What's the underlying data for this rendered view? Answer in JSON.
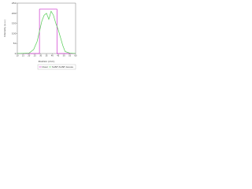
{
  "chart_data": {
    "type": "line",
    "xlabel": "Position (mm)",
    "ylabel": "Intensity (a.u.)",
    "xlim": [
      10,
      60
    ],
    "xticks": [
      10,
      15,
      20,
      25,
      30,
      35,
      40,
      45,
      50,
      55,
      60
    ],
    "ylim": [
      0,
      250
    ],
    "yticks": [
      0,
      50,
      100,
      150,
      200,
      250
    ],
    "legend": "lower right",
    "series": [
      {
        "name": "Ideal",
        "color": "#cc33cc",
        "x": [
          10,
          29,
          29,
          44,
          44,
          60
        ],
        "values": [
          0,
          0,
          220,
          220,
          0,
          0
        ]
      },
      {
        "name": "SANT-SANT-Gauss",
        "color": "#55cc55",
        "x": [
          10,
          20,
          24,
          27,
          29,
          31,
          33,
          35,
          37,
          39,
          41,
          43,
          45,
          47,
          49,
          51,
          55,
          60
        ],
        "values": [
          0,
          2,
          20,
          60,
          110,
          160,
          190,
          200,
          170,
          210,
          190,
          150,
          120,
          80,
          40,
          10,
          2,
          0
        ]
      }
    ]
  }
}
